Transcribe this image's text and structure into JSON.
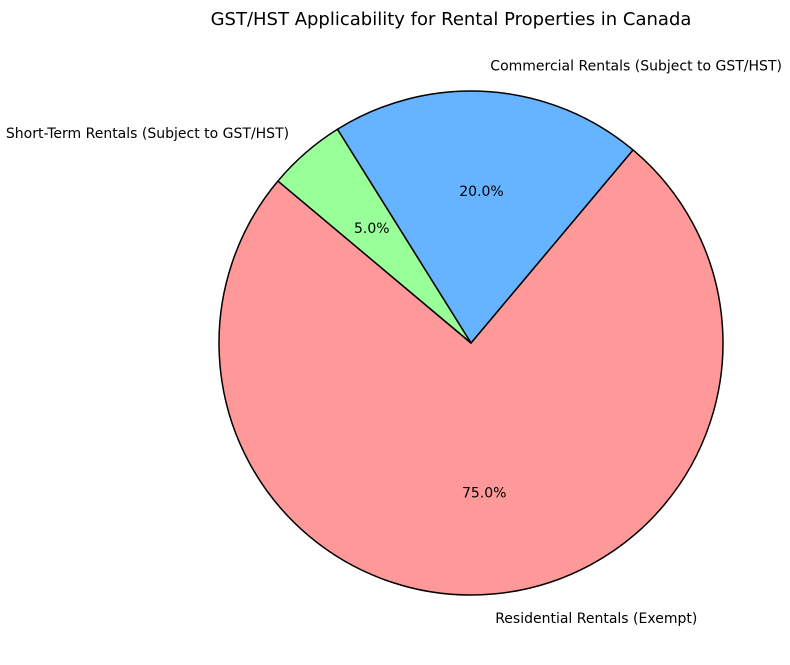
{
  "chart_data": {
    "type": "pie",
    "title": "GST/HST Applicability for Rental Properties in Canada",
    "slices": [
      {
        "label": "Residential Rentals (Exempt)",
        "value": 75,
        "pct_label": "75.0%",
        "color": "#ff9999"
      },
      {
        "label": "Commercial Rentals (Subject to GST/HST)",
        "value": 20,
        "pct_label": "20.0%",
        "color": "#66b3ff"
      },
      {
        "label": "Short-Term Rentals (Subject to GST/HST)",
        "value": 5,
        "pct_label": "5.0%",
        "color": "#99ff99"
      }
    ],
    "start_angle_deg": 140,
    "direction": "counterclockwise",
    "edge_color": "#000000",
    "text_color": "#000000",
    "background_color": "#ffffff",
    "legend": "none"
  }
}
